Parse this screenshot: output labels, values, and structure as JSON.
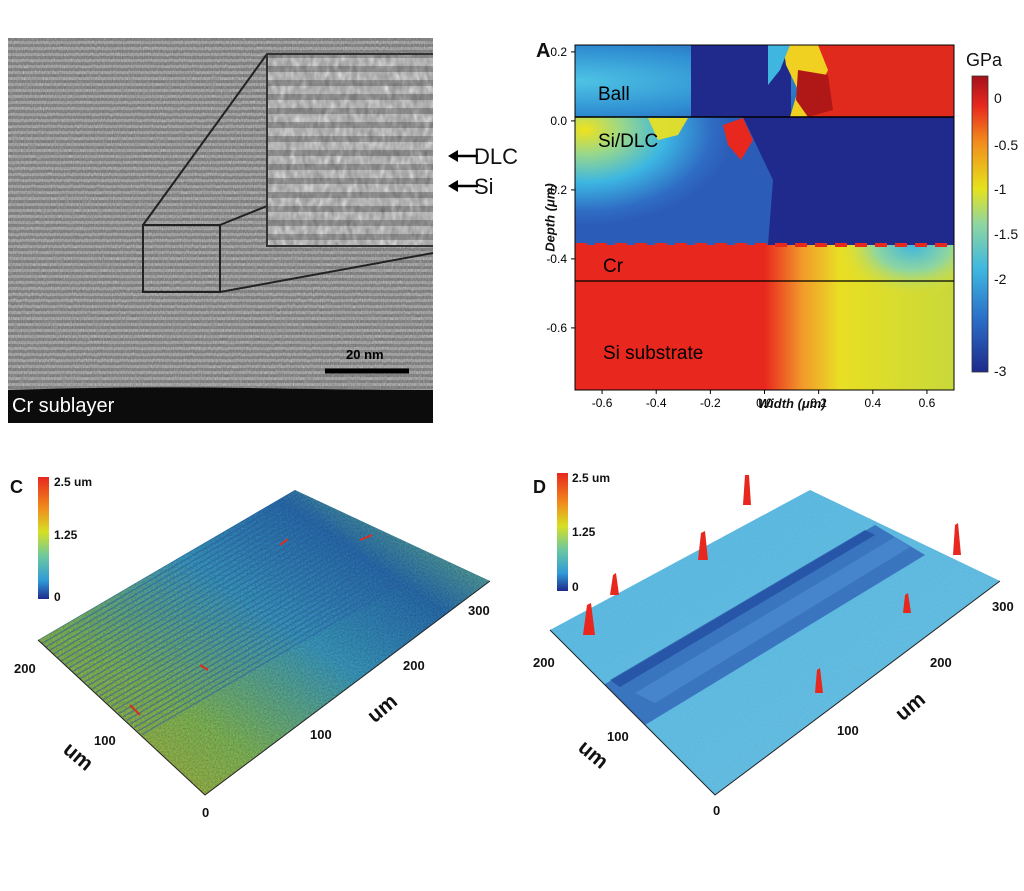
{
  "tem": {
    "label_dlc": "DLC",
    "label_si": "Si",
    "scale_bar": "20 nm",
    "sublayer": "Cr sublayer"
  },
  "panelA": {
    "letter": "A",
    "region_labels": [
      "Ball",
      "Si/DLC",
      "Cr",
      "Si substrate"
    ],
    "colorbar_unit": "GPa",
    "colorbar_ticks": [
      "0",
      "-0.5",
      "-1",
      "-1.5",
      "-2",
      "-3"
    ],
    "colors": {
      "red": "#e8281e",
      "yellow": "#f2e21c",
      "cyan": "#45c3e6",
      "navy": "#202a8c"
    }
  },
  "panelC": {
    "letter": "C",
    "scale_ticks": [
      "2.5 um",
      "1.25",
      "0"
    ],
    "axis_labels": [
      "200",
      "100",
      "0",
      "100",
      "200",
      "300"
    ],
    "unit_labels": [
      "um",
      "um"
    ]
  },
  "panelD": {
    "letter": "D",
    "scale_ticks": [
      "2.5 um",
      "1.25",
      "0"
    ],
    "axis_labels": [
      "200",
      "100",
      "0",
      "100",
      "200",
      "300"
    ],
    "unit_labels": [
      "um",
      "um"
    ]
  },
  "chart_data": {
    "type": "heatmap",
    "title": "",
    "xlabel": "Width (μm)",
    "ylabel": "Depth (μm)",
    "x_ticks": [
      "-0.6",
      "-0.4",
      "-0.2",
      "0.0",
      "0.2",
      "0.4",
      "0.6"
    ],
    "y_ticks": [
      "0.2",
      "0.0",
      "-0.2",
      "-0.4",
      "-0.6"
    ],
    "xlim": [
      -0.7,
      0.7
    ],
    "ylim": [
      -0.78,
      0.22
    ],
    "colorbar": {
      "unit": "GPa",
      "range": [
        -3,
        0.2
      ]
    },
    "layers": [
      {
        "name": "Ball",
        "depth": [
          0.0,
          0.22
        ]
      },
      {
        "name": "Si/DLC",
        "depth": [
          -0.4,
          0.0
        ]
      },
      {
        "name": "Cr",
        "depth": [
          -0.5,
          -0.4
        ]
      },
      {
        "name": "Si substrate",
        "depth": [
          -0.78,
          -0.5
        ]
      }
    ]
  }
}
